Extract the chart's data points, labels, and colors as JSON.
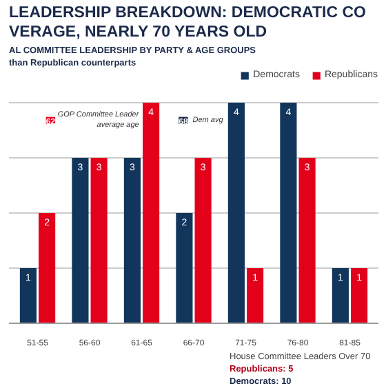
{
  "chart_data": {
    "type": "bar",
    "title": "LEADERSHIP BREAKDOWN: DEMOCRATIC CO\nVERAGE, NEARLY 70 YEARS OLD",
    "subtitle": "AL COMMITTEE LEADERSHIP BY PARTY & AGE GROUPS\nthan Republican counterparts",
    "categories": [
      "51-55",
      "56-60",
      "61-65",
      "66-70",
      "71-75",
      "76-80",
      "81-85"
    ],
    "series": [
      {
        "name": "Democrats",
        "color": "#12355b",
        "values": [
          1,
          3,
          3,
          2,
          4,
          4,
          1
        ]
      },
      {
        "name": "Republicans",
        "color": "#e3001b",
        "values": [
          2,
          3,
          4,
          3,
          1,
          3,
          1
        ]
      }
    ],
    "ylim": [
      0,
      4.6
    ],
    "yticks": [
      {
        "value": 0,
        "label": null
      },
      {
        "value": 1,
        "label": null
      },
      {
        "value": 2,
        "label": null
      },
      {
        "value": 3,
        "label": null
      },
      {
        "value": 4,
        "label": null
      }
    ],
    "tick_labels": "x",
    "grid": "y",
    "legend": "top right",
    "data_labels": true,
    "annotations": [
      "62",
      "GOP Committee Leader average age",
      "68",
      "Dem avg",
      "House Committee Leaders Over 70",
      "Republicans:  5",
      "Democrats: 10"
    ]
  }
}
